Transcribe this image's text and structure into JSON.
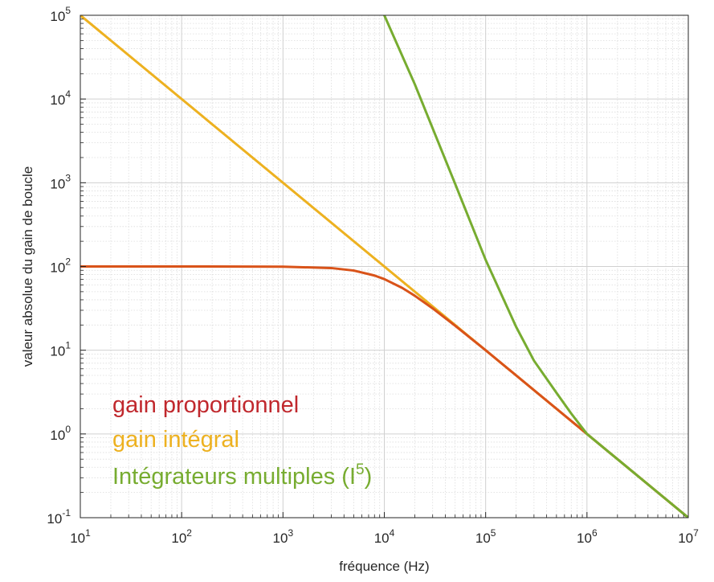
{
  "chart_data": {
    "type": "line",
    "title": "",
    "xlabel": "fréquence (Hz)",
    "ylabel": "valeur absolue du gain de boucle",
    "x_scale": "log",
    "y_scale": "log",
    "xlim": [
      10,
      10000000
    ],
    "ylim": [
      0.1,
      100000
    ],
    "x_ticks": [
      {
        "base": "10",
        "exp": "1"
      },
      {
        "base": "10",
        "exp": "2"
      },
      {
        "base": "10",
        "exp": "3"
      },
      {
        "base": "10",
        "exp": "4"
      },
      {
        "base": "10",
        "exp": "5"
      },
      {
        "base": "10",
        "exp": "6"
      },
      {
        "base": "10",
        "exp": "7"
      }
    ],
    "y_ticks": [
      {
        "base": "10",
        "exp": "-1"
      },
      {
        "base": "10",
        "exp": "0"
      },
      {
        "base": "10",
        "exp": "1"
      },
      {
        "base": "10",
        "exp": "2"
      },
      {
        "base": "10",
        "exp": "3"
      },
      {
        "base": "10",
        "exp": "4"
      },
      {
        "base": "10",
        "exp": "5"
      }
    ],
    "grid": true,
    "minor_grid": true,
    "legend_position": "bottom-left",
    "series": [
      {
        "name": "gain proportionnel",
        "color": "#d95319",
        "legend_color": "#c0282d",
        "x": [
          10,
          100,
          1000,
          3000,
          5000,
          8000,
          10000,
          15000,
          20000,
          30000,
          50000,
          100000,
          1000000,
          10000000
        ],
        "y": [
          100,
          100,
          99.5,
          95.8,
          89.4,
          78,
          70.7,
          55.5,
          44.7,
          31.6,
          19.6,
          10,
          1,
          0.1
        ]
      },
      {
        "name": "gain intégral",
        "color": "#edb120",
        "legend_color": "#edb120",
        "x": [
          10,
          10000000
        ],
        "y": [
          100000,
          0.1
        ]
      },
      {
        "name": "Intégrateurs multiples (I",
        "name_sup": "5",
        "name_suffix": ")",
        "color": "#77ac30",
        "legend_color": "#77ac30",
        "x": [
          10000,
          20000,
          50000,
          100000,
          200000,
          300000,
          500000,
          700000,
          1000000,
          2000000,
          5000000,
          10000000
        ],
        "y": [
          100000,
          15000,
          970,
          120,
          19,
          7.5,
          3.1,
          1.75,
          1.0,
          0.5,
          0.2,
          0.1
        ]
      }
    ]
  }
}
